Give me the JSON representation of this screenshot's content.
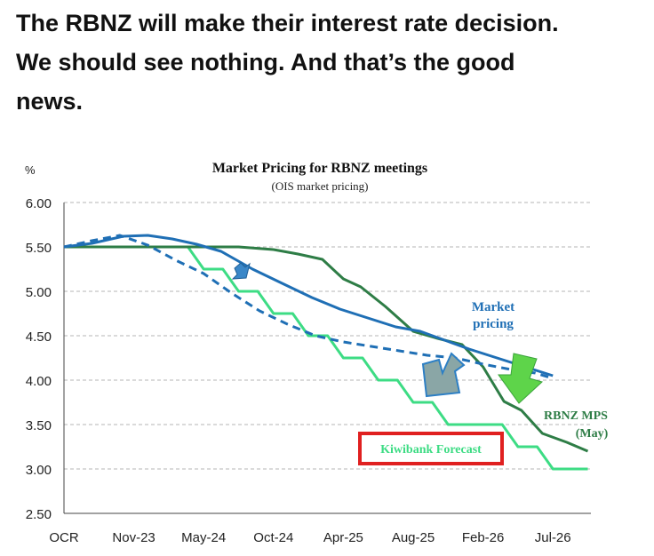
{
  "headline": {
    "line1": "The RBNZ will make their interest rate decision.",
    "line2": "We should see nothing. And that’s the good",
    "line3": "news."
  },
  "chart_data": {
    "type": "line",
    "title": "Market Pricing  for RBNZ meetings",
    "subtitle": "(OIS market pricing)",
    "ylabel": "%",
    "xlabel": "",
    "ylim": [
      2.5,
      6.0
    ],
    "yticks": [
      "6.00",
      "5.50",
      "5.00",
      "4.50",
      "4.00",
      "3.50",
      "3.00",
      "2.50"
    ],
    "ytick_values": [
      6.0,
      5.5,
      5.0,
      4.5,
      4.0,
      3.5,
      3.0,
      2.5
    ],
    "xticks": [
      "OCR",
      "Nov-23",
      "May-24",
      "Oct-24",
      "Apr-25",
      "Aug-25",
      "Feb-26",
      "Jul-26"
    ],
    "xtick_index": [
      0,
      2,
      4,
      6,
      8,
      10,
      12,
      14
    ],
    "x_count": 16,
    "grid": true,
    "series": [
      {
        "name": "Kiwibank Forecast",
        "color": "#3ddc84",
        "style": "solid",
        "step": true,
        "values": [
          5.5,
          5.5,
          5.5,
          5.5,
          5.25,
          5.0,
          4.75,
          4.5,
          4.25,
          4.0,
          3.75,
          3.5,
          3.5,
          3.25,
          3.0,
          3.0
        ]
      },
      {
        "name": "RBNZ MPS\n(May)",
        "color": "#2e7d46",
        "style": "solid",
        "step": false,
        "values": [
          5.5,
          5.5,
          5.5,
          5.5,
          5.5,
          5.5,
          5.47,
          5.42,
          5.36,
          5.14,
          5.05,
          4.83,
          4.55,
          4.47,
          4.4,
          4.15,
          3.76,
          3.66,
          3.4,
          3.3,
          3.2
        ],
        "x": [
          0,
          1,
          2,
          3,
          4,
          5,
          6,
          6.7,
          7.4,
          8,
          8.5,
          9.2,
          10,
          10.7,
          11.4,
          12,
          12.6,
          13.1,
          13.7,
          14.4,
          15
        ]
      },
      {
        "name": "Market\npricing",
        "color": "#1f6fb5",
        "style": "solid",
        "step": false,
        "values": [
          5.5,
          5.54,
          5.62,
          5.63,
          5.59,
          5.53,
          5.45,
          5.25,
          5.08,
          4.93,
          4.8,
          4.7,
          4.6,
          4.55,
          4.45,
          4.35,
          4.25,
          4.15,
          4.05
        ],
        "x": [
          0,
          0.8,
          1.7,
          2.4,
          3.1,
          3.8,
          4.5,
          5.4,
          6.3,
          7.1,
          7.9,
          8.7,
          9.5,
          10.2,
          10.9,
          11.6,
          12.4,
          13.2,
          14
        ]
      },
      {
        "name": "",
        "color": "#1f6fb5",
        "style": "dashed",
        "step": false,
        "values": [
          5.5,
          5.57,
          5.63,
          5.52,
          5.35,
          5.2,
          4.98,
          4.78,
          4.63,
          4.5,
          4.43,
          4.38,
          4.33,
          4.28,
          4.25,
          4.18,
          4.12,
          4.08,
          4.02
        ],
        "x": [
          0,
          0.8,
          1.6,
          2.4,
          3.2,
          4,
          4.8,
          5.6,
          6.4,
          7.2,
          8,
          8.8,
          9.6,
          10.4,
          11.2,
          12,
          12.8,
          13.5,
          14
        ]
      }
    ],
    "annotations": {
      "kiwibank_label": "Kiwibank Forecast",
      "market_label_line1": "Market",
      "market_label_line2": "pricing",
      "rbnz_label_line1": "RBNZ MPS",
      "rbnz_label_line2": "(May)"
    },
    "colors": {
      "kiwibank": "#3ddc84",
      "rbnz": "#2e7d46",
      "market": "#1f6fb5",
      "title": "#111111",
      "box": "#e02020",
      "arrow_blue": "#2d7fc4",
      "arrow_grey": "#8aa6a6",
      "arrow_green": "#5ed44a"
    }
  }
}
